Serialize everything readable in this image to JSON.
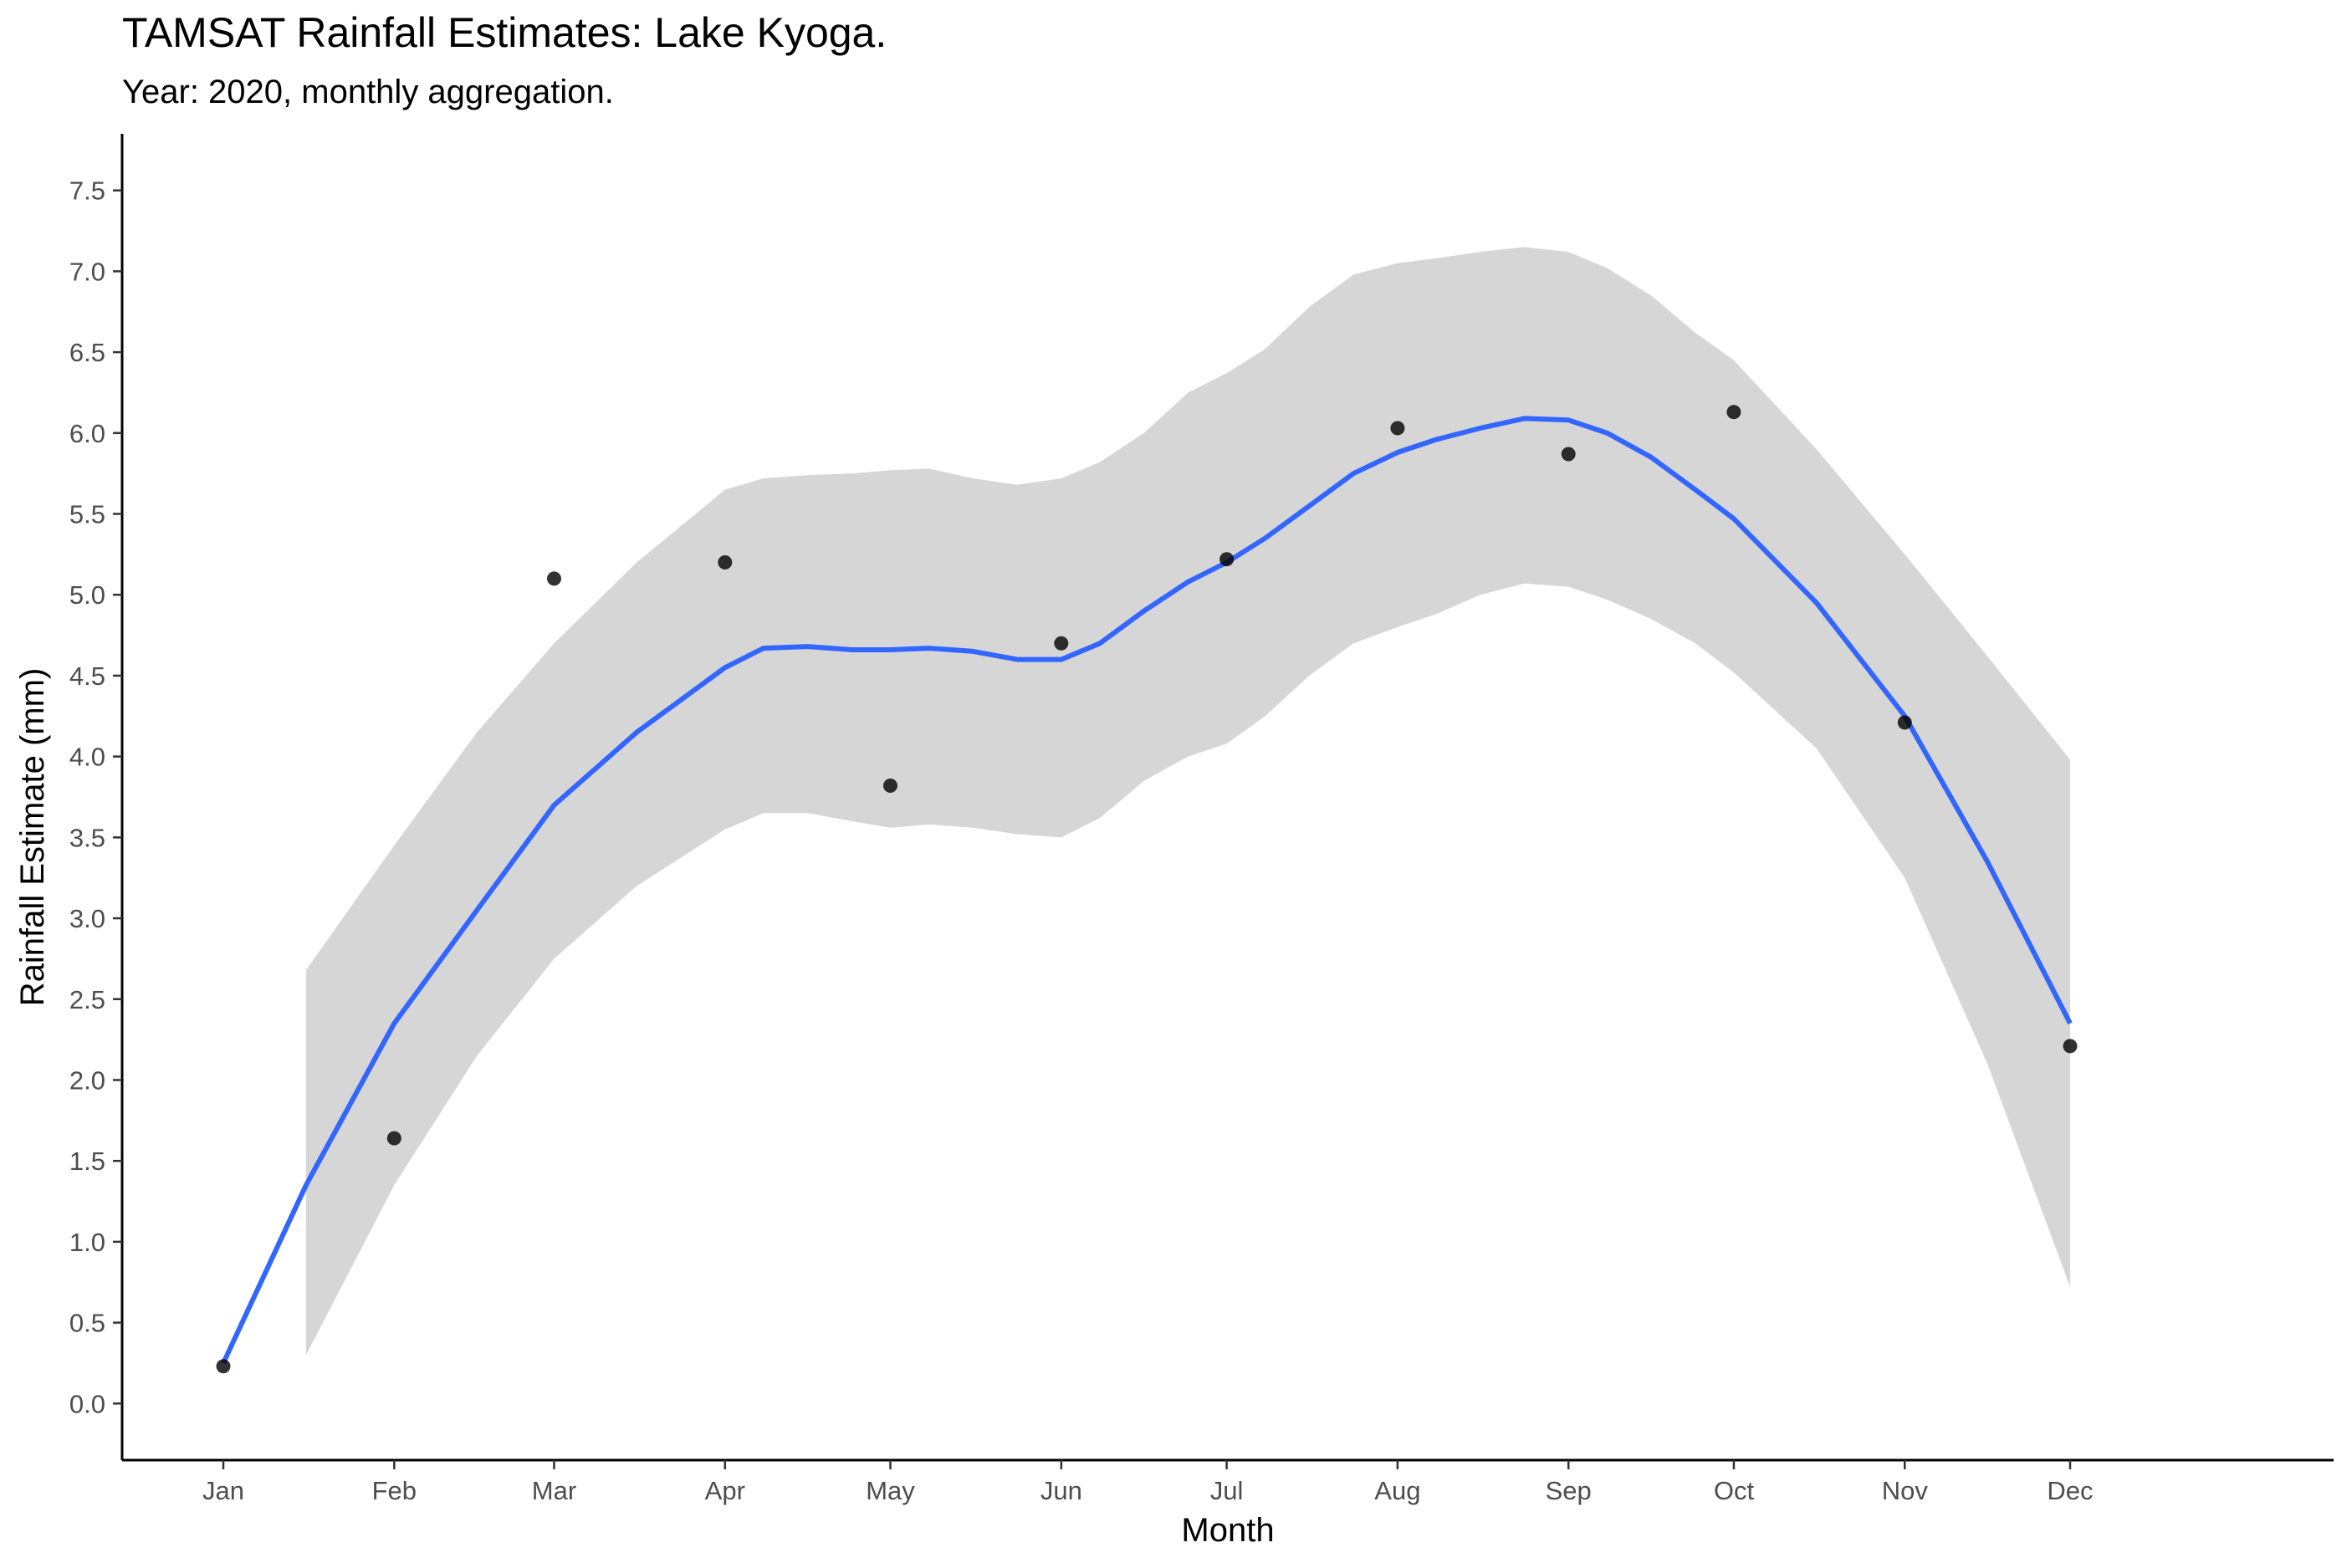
{
  "chart_data": {
    "type": "scatter",
    "title": "TAMSAT Rainfall Estimates: Lake Kyoga.",
    "subtitle": "Year: 2020, monthly aggregation.",
    "xlabel": "Month",
    "ylabel": "Rainfall Estimate (mm)",
    "x": [
      "2020-01-01",
      "2020-02-01",
      "2020-03-01",
      "2020-04-01",
      "2020-05-01",
      "2020-06-01",
      "2020-07-01",
      "2020-08-01",
      "2020-09-01",
      "2020-10-01",
      "2020-11-01",
      "2020-12-01"
    ],
    "tick_labels_x": [
      "Jan",
      "Feb",
      "Mar",
      "Apr",
      "May",
      "Jun",
      "Jul",
      "Aug",
      "Sep",
      "Oct",
      "Nov",
      "Dec"
    ],
    "values": [
      0.23,
      1.64,
      5.1,
      5.2,
      3.82,
      4.7,
      5.22,
      6.03,
      5.87,
      6.13,
      4.21,
      2.21
    ],
    "ylim": [
      -0.35,
      7.85
    ],
    "y_ticks": [
      "0.0",
      "0.5",
      "1.0",
      "1.5",
      "2.0",
      "2.5",
      "3.0",
      "3.5",
      "4.0",
      "4.5",
      "5.0",
      "5.5",
      "6.0",
      "6.5",
      "7.0",
      "7.5"
    ],
    "smooth": {
      "x": [
        "2020-01-01",
        "2020-01-16",
        "2020-02-01",
        "2020-02-16",
        "2020-03-01",
        "2020-03-16",
        "2020-04-01",
        "2020-04-08",
        "2020-04-16",
        "2020-04-24",
        "2020-05-01",
        "2020-05-08",
        "2020-05-16",
        "2020-05-24",
        "2020-06-01",
        "2020-06-08",
        "2020-06-16",
        "2020-06-24",
        "2020-07-01",
        "2020-07-08",
        "2020-07-16",
        "2020-07-24",
        "2020-08-01",
        "2020-08-08",
        "2020-08-16",
        "2020-08-24",
        "2020-09-01",
        "2020-09-08",
        "2020-09-16",
        "2020-09-24",
        "2020-10-01",
        "2020-10-16",
        "2020-11-01",
        "2020-11-16",
        "2020-12-01"
      ],
      "y": [
        0.25,
        1.35,
        2.35,
        3.05,
        3.7,
        4.15,
        4.55,
        4.67,
        4.68,
        4.66,
        4.66,
        4.67,
        4.65,
        4.6,
        4.6,
        4.7,
        4.9,
        5.08,
        5.2,
        5.35,
        5.55,
        5.75,
        5.88,
        5.96,
        6.03,
        6.09,
        6.08,
        6.0,
        5.85,
        5.65,
        5.47,
        4.95,
        4.25,
        3.35,
        2.35
      ],
      "lower": [
        null,
        0.3,
        1.35,
        2.15,
        2.75,
        3.2,
        3.55,
        3.65,
        3.65,
        3.6,
        3.56,
        3.58,
        3.56,
        3.52,
        3.5,
        3.62,
        3.85,
        4.0,
        4.08,
        4.25,
        4.5,
        4.7,
        4.8,
        4.88,
        5.0,
        5.07,
        5.05,
        4.97,
        4.85,
        4.7,
        4.52,
        4.05,
        3.25,
        2.1,
        0.72
      ],
      "upper": [
        null,
        2.68,
        3.45,
        4.15,
        4.7,
        5.2,
        5.65,
        5.72,
        5.74,
        5.75,
        5.77,
        5.78,
        5.72,
        5.68,
        5.72,
        5.82,
        6.0,
        6.25,
        6.37,
        6.52,
        6.78,
        6.98,
        7.05,
        7.08,
        7.12,
        7.15,
        7.12,
        7.02,
        6.85,
        6.62,
        6.45,
        5.9,
        5.25,
        4.62,
        3.98
      ]
    },
    "colors": {
      "points": "#000000",
      "line": "#3366ff",
      "band": "#d6d6d6",
      "axis": "#000000"
    },
    "grid": false,
    "legend": "none"
  }
}
